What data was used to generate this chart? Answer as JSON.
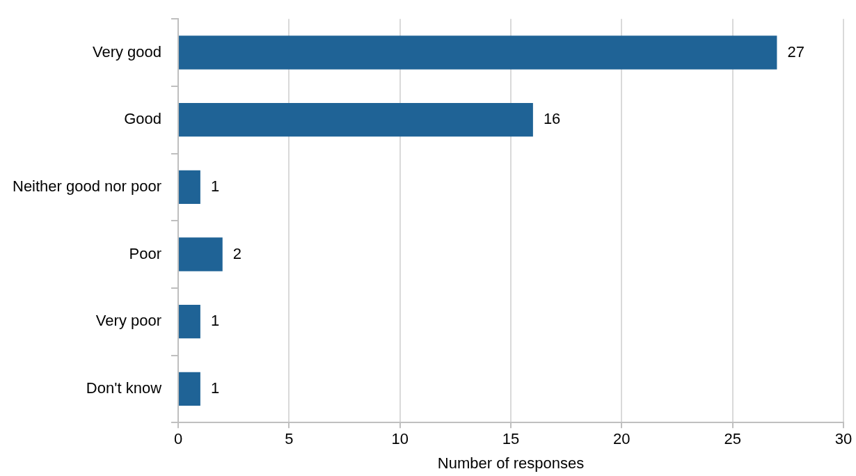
{
  "chart_data": {
    "type": "bar",
    "orientation": "horizontal",
    "xlabel": "Number of responses",
    "categories": [
      "Very good",
      "Good",
      "Neither good nor poor",
      "Poor",
      "Very poor",
      "Don't know"
    ],
    "values": [
      27,
      16,
      1,
      2,
      1,
      1
    ],
    "color": "#1f6396",
    "xlim": [
      0,
      30
    ],
    "xticks": [
      0,
      5,
      10,
      15,
      20,
      25,
      30
    ],
    "grid": "x",
    "data_labels": true,
    "legend": false
  }
}
